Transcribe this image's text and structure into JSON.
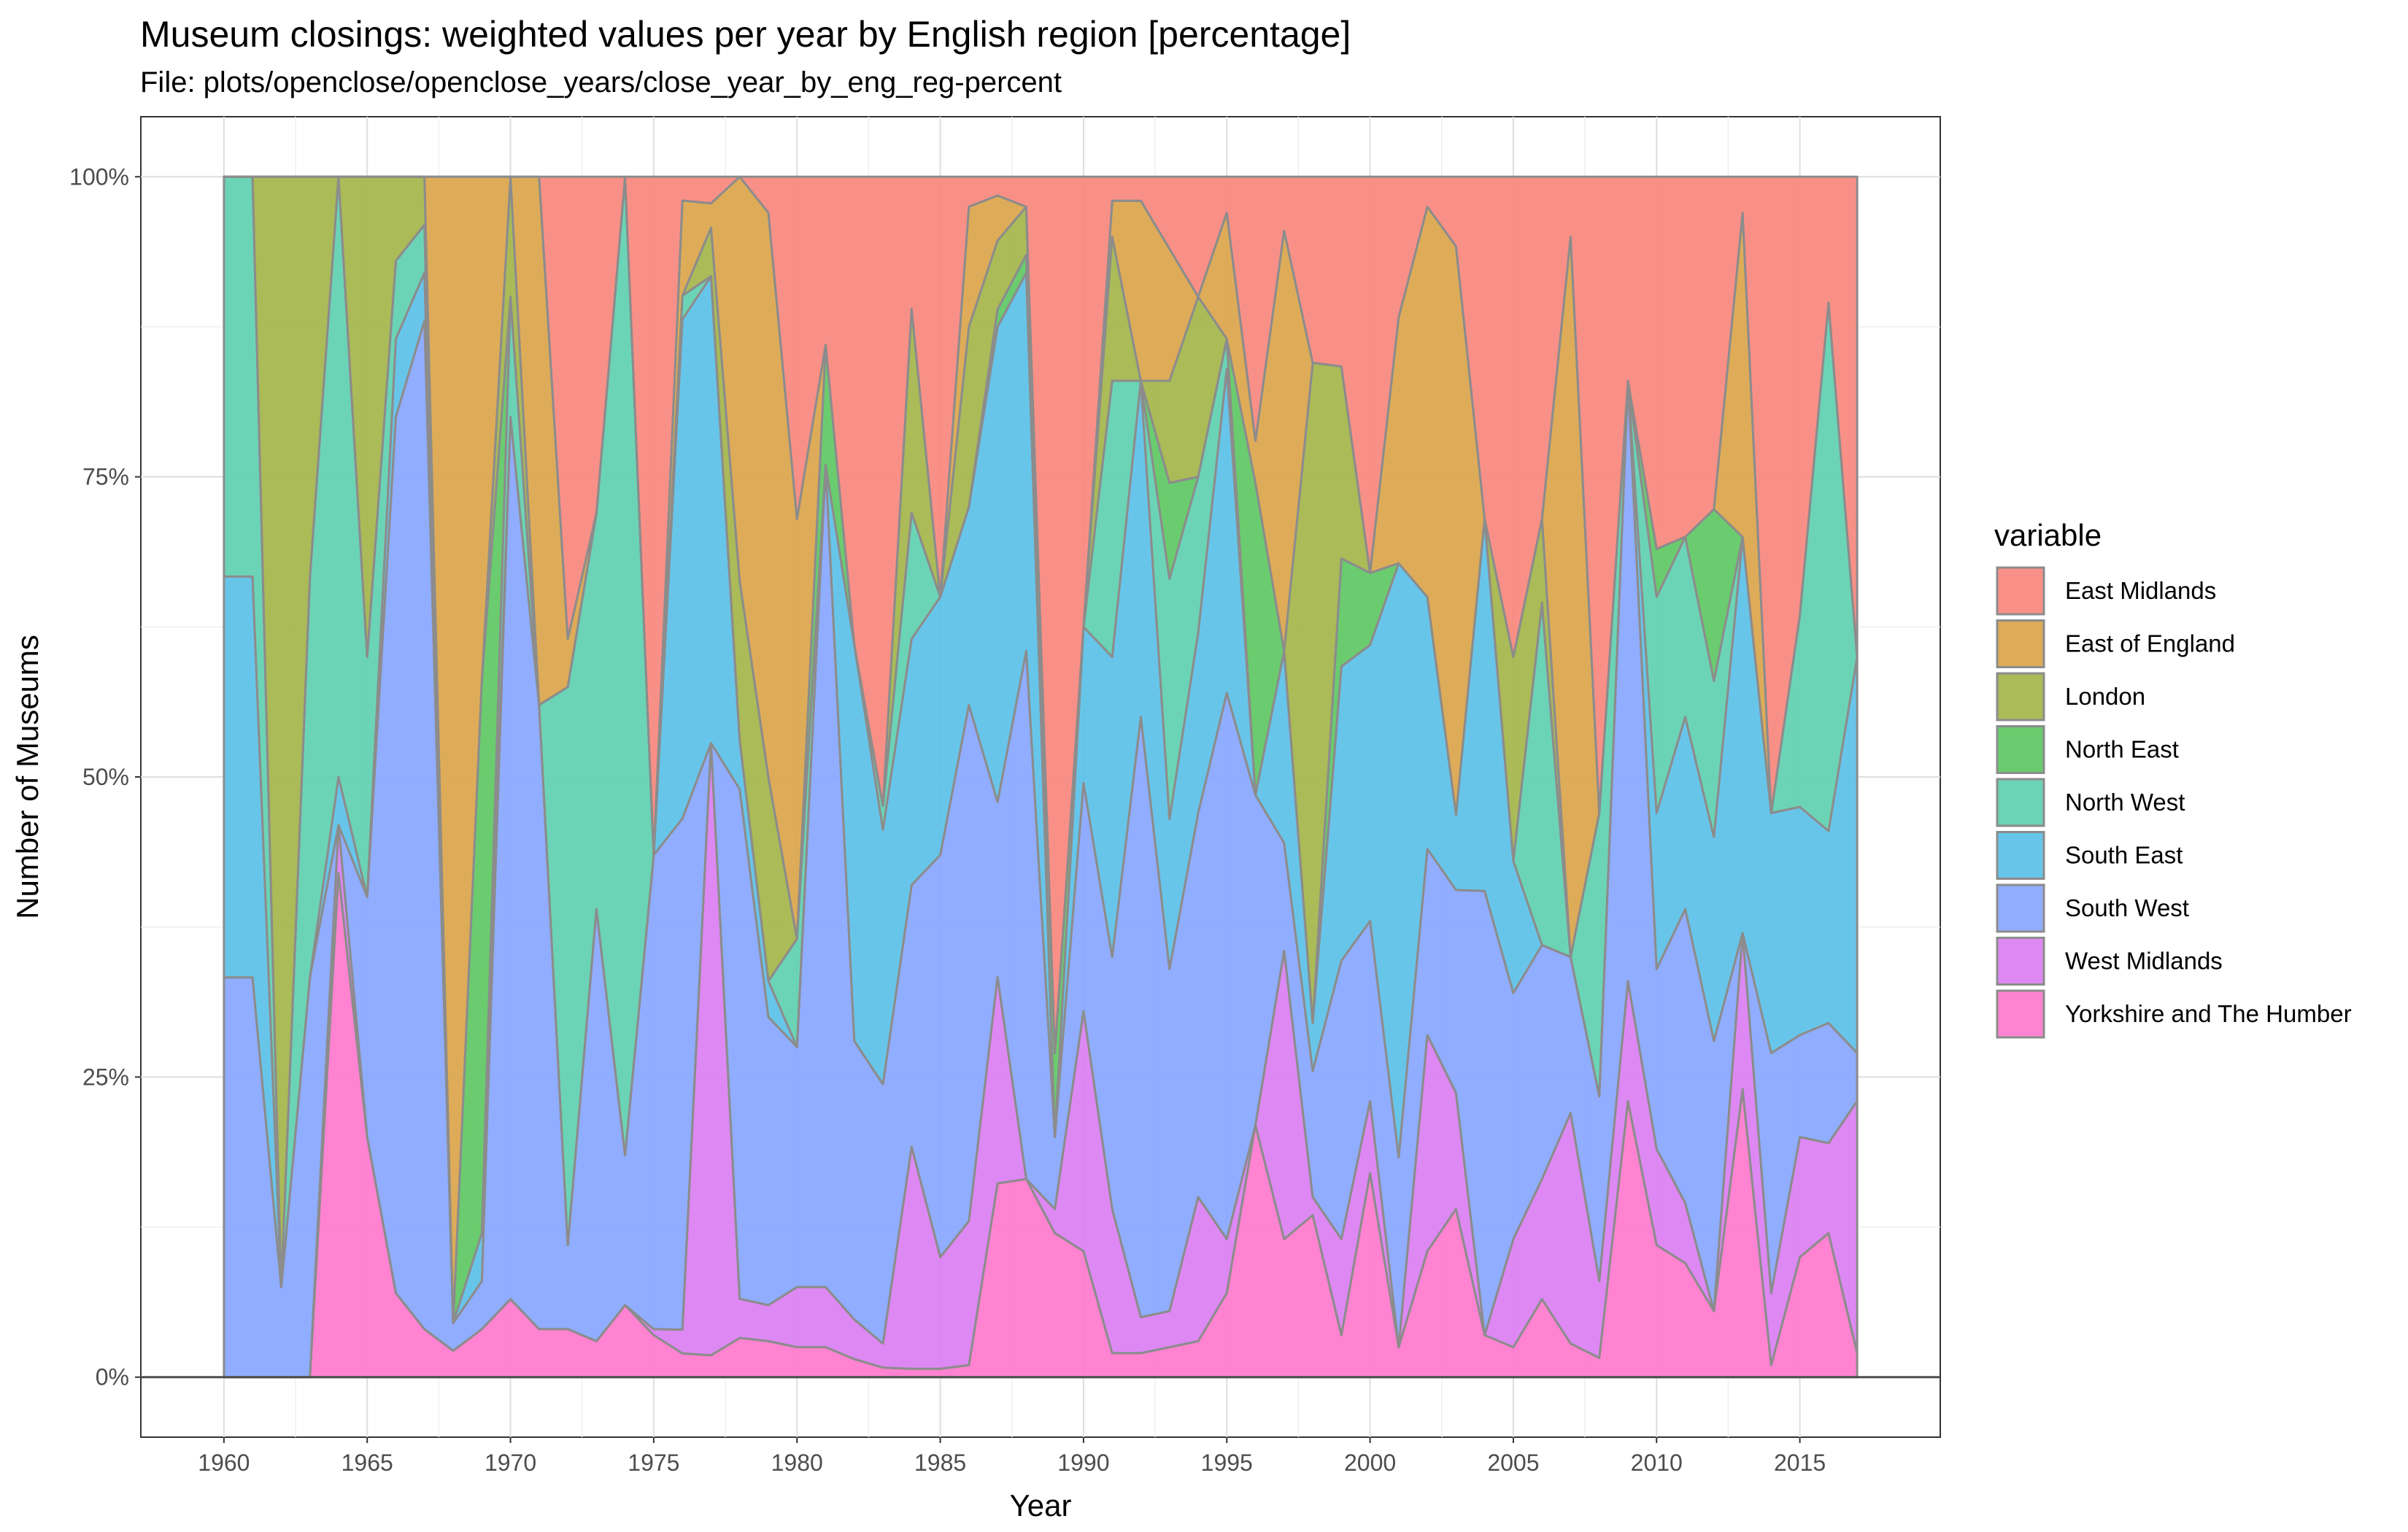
{
  "chart_data": {
    "type": "area",
    "stacked": true,
    "normalized": true,
    "title": "Museum closings: weighted values per year by English region [percentage]",
    "subtitle": "File: plots/openclose/openclose_years/close_year_by_eng_reg-percent",
    "xlabel": "Year",
    "ylabel": "Number of Museums",
    "xlim": [
      1957.1,
      2019.9
    ],
    "ylim": [
      -0.05,
      1.05
    ],
    "x_ticks": [
      1960,
      1965,
      1970,
      1975,
      1980,
      1985,
      1990,
      1995,
      2000,
      2005,
      2010,
      2015
    ],
    "y_ticks": [
      0,
      0.25,
      0.5,
      0.75,
      1.0
    ],
    "y_tick_labels": [
      "0%",
      "25%",
      "50%",
      "75%",
      "100%"
    ],
    "grid": true,
    "legend_title": "variable",
    "legend_position": "right",
    "outline_color": "#8c8c8c",
    "x": [
      1960,
      1961,
      1962,
      1963,
      1964,
      1965,
      1966,
      1967,
      1968,
      1969,
      1970,
      1971,
      1972,
      1973,
      1974,
      1975,
      1976,
      1977,
      1978,
      1979,
      1980,
      1981,
      1982,
      1983,
      1984,
      1985,
      1986,
      1987,
      1988,
      1989,
      1990,
      1991,
      1992,
      1993,
      1994,
      1995,
      1996,
      1997,
      1998,
      1999,
      2000,
      2001,
      2002,
      2003,
      2004,
      2005,
      2006,
      2007,
      2008,
      2009,
      2010,
      2011,
      2012,
      2013,
      2014,
      2015,
      2016,
      2017
    ],
    "series": [
      {
        "name": "Yorkshire and The Humber",
        "color": "#FF78CD",
        "values": [
          0,
          0,
          0,
          0,
          0.42,
          0.2,
          0.07,
          0.04,
          0.022,
          0.04,
          0.065,
          0.04,
          0.04,
          0.03,
          0.06,
          0.035,
          0.02,
          0.018,
          0.032,
          0.03,
          0.025,
          0.025,
          0.015,
          0.01,
          0.007,
          0.007,
          0.01,
          0.155,
          0.165,
          0.12,
          0.105,
          0.02,
          0.02,
          0.025,
          0.03,
          0.07,
          0.21,
          0.115,
          0.135,
          0.035,
          0.17,
          0.025,
          0.105,
          0.145,
          0.035,
          0.025,
          0.065,
          0.028,
          0.016,
          0.23,
          0.11,
          0.095,
          0.055,
          0.24,
          0.01,
          0.1,
          0.12,
          0.02
        ]
      },
      {
        "name": "West Midlands",
        "color": "#DB7EF3",
        "values": [
          0,
          0,
          0,
          0,
          0.04,
          0.0,
          0.0,
          0.0,
          0.0,
          0.0,
          0.0,
          0.0,
          0.0,
          0.0,
          0.0,
          0.005,
          0.02,
          0.505,
          0.032,
          0.03,
          0.05,
          0.05,
          0.033,
          0.025,
          0.185,
          0.093,
          0.12,
          0.165,
          0.0,
          0.02,
          0.2,
          0.12,
          0.03,
          0.03,
          0.12,
          0.045,
          0.0,
          0.24,
          0.015,
          0.08,
          0.06,
          0.0,
          0.18,
          0.1,
          0.0,
          0.09,
          0.1,
          0.192,
          0.064,
          0.1,
          0.08,
          0.05,
          0.0,
          0.13,
          0.06,
          0.1,
          0.075,
          0.21
        ]
      },
      {
        "name": "South West",
        "color": "#87A6FF",
        "values": [
          0.333,
          0.333,
          0.075,
          0.333,
          0.0,
          0.2,
          0.73,
          0.84,
          0.023,
          0.04,
          0.735,
          0.52,
          0.07,
          0.36,
          0.125,
          0.395,
          0.43,
          0.0,
          0.416,
          0.24,
          0.2,
          0.685,
          0.232,
          0.27,
          0.218,
          0.335,
          0.43,
          0.14,
          0.44,
          0.06,
          0.19,
          0.21,
          0.5,
          0.285,
          0.32,
          0.455,
          0.275,
          0.09,
          0.105,
          0.232,
          0.15,
          0.158,
          0.155,
          0.175,
          0.37,
          0.205,
          0.195,
          0.13,
          0.154,
          0.5,
          0.15,
          0.245,
          0.225,
          0.0,
          0.2,
          0.085,
          0.1,
          0.04
        ]
      },
      {
        "name": "South East",
        "color": "#5BC0E8",
        "values": [
          0.334,
          0.334,
          0.0,
          0.0,
          0.04,
          0.0,
          0.065,
          0.04,
          0.0,
          0.04,
          0.0,
          0.0,
          0.0,
          0.0,
          0.0,
          0.0,
          0.42,
          0.385,
          0.04,
          0.03,
          0.0,
          0.0,
          0.33,
          0.265,
          0.205,
          0.215,
          0.165,
          0.38,
          0.315,
          0.0,
          0.13,
          0.25,
          0.28,
          0.125,
          0.15,
          0.27,
          0.0,
          0.16,
          0.04,
          0.245,
          0.23,
          0.495,
          0.21,
          0.065,
          0.31,
          0.11,
          0.0,
          0.0,
          0.0,
          0.0,
          0.13,
          0.16,
          0.17,
          0.33,
          0.2,
          0.19,
          0.16,
          0.33
        ]
      },
      {
        "name": "North West",
        "color": "#5FD0B0",
        "values": [
          0.333,
          0.333,
          0.0,
          0.333,
          0.5,
          0.2,
          0.065,
          0.04,
          0.0,
          0.0,
          0.1,
          0.0,
          0.465,
          0.33,
          0.815,
          0.0,
          0.02,
          0.0,
          0.0,
          0.0,
          0.09,
          0.0,
          0.0,
          0.025,
          0.105,
          0.0,
          0.0,
          0.0,
          0.0,
          0.0,
          0.0,
          0.23,
          0.0,
          0.2,
          0.13,
          0.025,
          0.0,
          0.0,
          0.0,
          0.0,
          0.0,
          0.0,
          0.0,
          0.0,
          0.0,
          0.0,
          0.285,
          0.0,
          0.236,
          0.0,
          0.18,
          0.15,
          0.13,
          0.0,
          0.0,
          0.16,
          0.44,
          0.0
        ]
      },
      {
        "name": "North East",
        "color": "#5DC863",
        "values": [
          0,
          0,
          0,
          0,
          0.0,
          0.0,
          0.0,
          0.0,
          0.0,
          0.46,
          0.0,
          0.0,
          0.0,
          0.0,
          0.0,
          0.0,
          0.0,
          0.0,
          0.0,
          0.0,
          0.0,
          0.1,
          0.0,
          0.0,
          0.0,
          0.0,
          0.0,
          0.014,
          0.015,
          0.07,
          0.0,
          0.0,
          0.0,
          0.08,
          0.0,
          0.0,
          0.26,
          0.0,
          0.0,
          0.09,
          0.06,
          0.0,
          0.0,
          0.0,
          0.0,
          0.0,
          0.0,
          0.0,
          0.0,
          0.0,
          0.04,
          0.0,
          0.143,
          0.0,
          0.0,
          0.0,
          0.0,
          0.0
        ]
      },
      {
        "name": "London",
        "color": "#A3B54A",
        "values": [
          0,
          0,
          0.925,
          0.334,
          0.0,
          0.4,
          0.07,
          0.04,
          0.0,
          0.0,
          0.1,
          0.0,
          0.0,
          0.0,
          0.0,
          0.0,
          0.0,
          0.04,
          0.13,
          0.17,
          0.0,
          0.0,
          0.0,
          0.0,
          0.17,
          0.0,
          0.15,
          0.055,
          0.04,
          0.0,
          0.0,
          0.12,
          0.0,
          0.085,
          0.15,
          0.0,
          0.0,
          0.0,
          0.55,
          0.16,
          0.0,
          0.0,
          0.0,
          0.0,
          0.0,
          0.17,
          0.07,
          0.0,
          0.0,
          0.0,
          0.0,
          0.0,
          0.0,
          0.0,
          0.0,
          0.0,
          0.0,
          0.0
        ]
      },
      {
        "name": "East of England",
        "color": "#DBA54A",
        "values": [
          0,
          0,
          0,
          0,
          0,
          0.0,
          0.0,
          0.0,
          0.955,
          0.42,
          0.0,
          0.44,
          0.04,
          0.0,
          0.0,
          0.0,
          0.08,
          0.02,
          0.33,
          0.47,
          0.35,
          0.0,
          0.0,
          0.0,
          0.0,
          0.0,
          0.1,
          0.036,
          0.0,
          0.0,
          0.0,
          0.03,
          0.15,
          0.11,
          0.0,
          0.105,
          0.035,
          0.35,
          0.0,
          0.0,
          0.0,
          0.205,
          0.325,
          0.49,
          0.0,
          0.0,
          0.0,
          0.6,
          0.0,
          0.0,
          0.0,
          0.0,
          0.0,
          0.27,
          0.0,
          0.0,
          0.0,
          0.0
        ]
      },
      {
        "name": "East Midlands",
        "color": "#F8877D",
        "values": [
          0,
          0,
          0,
          0,
          0,
          0.0,
          0.0,
          0.0,
          0.0,
          0.0,
          0.0,
          0.0,
          0.385,
          0.28,
          0.0,
          0.565,
          0.02,
          0.022,
          0.0,
          0.03,
          0.285,
          0.14,
          0.39,
          0.655,
          0.11,
          0.35,
          0.025,
          0.015,
          0.025,
          0.73,
          0.375,
          0.02,
          0.02,
          0.06,
          0.1,
          0.03,
          0.22,
          0.045,
          0.155,
          0.158,
          0.33,
          0.117,
          0.025,
          0.06,
          0.285,
          0.4,
          0.285,
          0.05,
          0.53,
          0.17,
          0.31,
          0.3,
          0.277,
          0.03,
          0.53,
          0.365,
          0.105,
          0.4
        ]
      }
    ]
  }
}
